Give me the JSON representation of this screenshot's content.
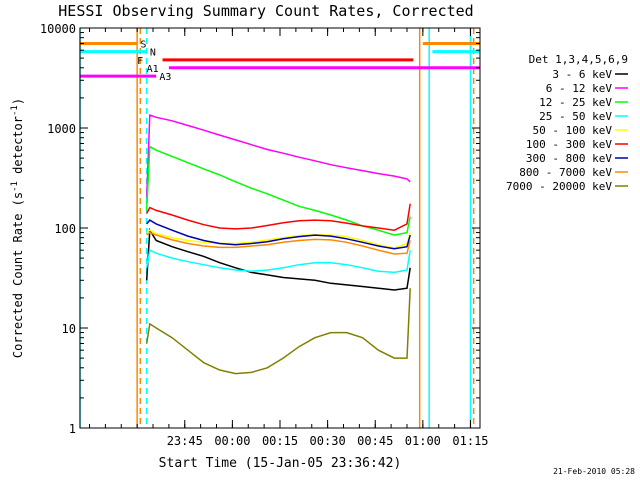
{
  "chart_data": {
    "type": "line",
    "title": "HESSI Observing Summary Count Rates, Corrected",
    "xlabel": "Start Time (15-Jan-05 23:36:42)",
    "ylabel_main": "Corrected Count Rate (s",
    "ylabel_sup1": "-1",
    "ylabel_mid": " detector",
    "ylabel_sup2": "-1",
    "ylabel_end": ")",
    "y_scale": "log",
    "ylim": [
      1,
      10000
    ],
    "xlim_minutes": [
      -24,
      102
    ],
    "x_ticks": [
      {
        "m": 9,
        "label": "23:45"
      },
      {
        "m": 24,
        "label": "00:00"
      },
      {
        "m": 39,
        "label": "00:15"
      },
      {
        "m": 54,
        "label": "00:30"
      },
      {
        "m": 69,
        "label": "00:45"
      },
      {
        "m": 84,
        "label": "01:00"
      },
      {
        "m": 99,
        "label": "01:15"
      }
    ],
    "y_ticks": [
      {
        "v": 1,
        "label": "1"
      },
      {
        "v": 10,
        "label": "10"
      },
      {
        "v": 100,
        "label": "100"
      },
      {
        "v": 1000,
        "label": "1000"
      },
      {
        "v": 10000,
        "label": "10000"
      }
    ],
    "legend_position": "right",
    "legend_title": "Det 1,3,4,5,6,9",
    "footer": "21-Feb-2010 05:28",
    "series": [
      {
        "name": "3 - 6 keV",
        "color": "#000000",
        "points": [
          [
            -3,
            30
          ],
          [
            -2,
            95
          ],
          [
            0,
            75
          ],
          [
            5,
            65
          ],
          [
            10,
            58
          ],
          [
            15,
            52
          ],
          [
            20,
            45
          ],
          [
            25,
            40
          ],
          [
            30,
            36
          ],
          [
            35,
            34
          ],
          [
            40,
            32
          ],
          [
            45,
            31
          ],
          [
            50,
            30
          ],
          [
            55,
            28
          ],
          [
            60,
            27
          ],
          [
            65,
            26
          ],
          [
            70,
            25
          ],
          [
            75,
            24
          ],
          [
            79,
            25
          ],
          [
            80,
            40
          ]
        ]
      },
      {
        "name": "6 - 12 keV",
        "color": "#ff00ff",
        "points": [
          [
            -3,
            200
          ],
          [
            -2,
            1350
          ],
          [
            0,
            1280
          ],
          [
            5,
            1180
          ],
          [
            10,
            1060
          ],
          [
            15,
            950
          ],
          [
            20,
            850
          ],
          [
            25,
            760
          ],
          [
            30,
            680
          ],
          [
            35,
            610
          ],
          [
            40,
            560
          ],
          [
            45,
            510
          ],
          [
            50,
            470
          ],
          [
            55,
            430
          ],
          [
            60,
            400
          ],
          [
            65,
            375
          ],
          [
            70,
            350
          ],
          [
            75,
            330
          ],
          [
            79,
            310
          ],
          [
            80,
            290
          ]
        ]
      },
      {
        "name": "12 - 25 keV",
        "color": "#00ff00",
        "points": [
          [
            -3,
            150
          ],
          [
            -2,
            650
          ],
          [
            0,
            600
          ],
          [
            5,
            520
          ],
          [
            10,
            450
          ],
          [
            15,
            390
          ],
          [
            20,
            340
          ],
          [
            25,
            290
          ],
          [
            30,
            250
          ],
          [
            35,
            220
          ],
          [
            40,
            190
          ],
          [
            45,
            165
          ],
          [
            50,
            150
          ],
          [
            55,
            135
          ],
          [
            60,
            120
          ],
          [
            65,
            105
          ],
          [
            70,
            95
          ],
          [
            75,
            85
          ],
          [
            79,
            90
          ],
          [
            80,
            130
          ]
        ]
      },
      {
        "name": "25 - 50 keV",
        "color": "#00ffff",
        "points": [
          [
            -3,
            40
          ],
          [
            -2,
            60
          ],
          [
            0,
            56
          ],
          [
            5,
            50
          ],
          [
            10,
            46
          ],
          [
            15,
            43
          ],
          [
            20,
            40
          ],
          [
            25,
            38
          ],
          [
            30,
            37
          ],
          [
            35,
            38
          ],
          [
            40,
            40
          ],
          [
            45,
            43
          ],
          [
            50,
            45
          ],
          [
            55,
            45
          ],
          [
            60,
            43
          ],
          [
            65,
            40
          ],
          [
            70,
            37
          ],
          [
            75,
            36
          ],
          [
            79,
            38
          ],
          [
            80,
            60
          ]
        ]
      },
      {
        "name": "50 - 100 keV",
        "color": "#ffff00",
        "points": [
          [
            -3,
            90
          ],
          [
            -2,
            95
          ],
          [
            0,
            88
          ],
          [
            5,
            80
          ],
          [
            10,
            75
          ],
          [
            15,
            72
          ],
          [
            20,
            70
          ],
          [
            25,
            70
          ],
          [
            30,
            72
          ],
          [
            35,
            76
          ],
          [
            40,
            80
          ],
          [
            45,
            84
          ],
          [
            50,
            86
          ],
          [
            55,
            85
          ],
          [
            60,
            82
          ],
          [
            65,
            75
          ],
          [
            70,
            68
          ],
          [
            75,
            63
          ],
          [
            79,
            70
          ],
          [
            80,
            90
          ]
        ]
      },
      {
        "name": "100 - 300 keV",
        "color": "#ff0000",
        "points": [
          [
            -3,
            140
          ],
          [
            -2,
            160
          ],
          [
            0,
            150
          ],
          [
            5,
            135
          ],
          [
            10,
            120
          ],
          [
            15,
            108
          ],
          [
            20,
            100
          ],
          [
            25,
            98
          ],
          [
            30,
            100
          ],
          [
            35,
            106
          ],
          [
            40,
            113
          ],
          [
            45,
            118
          ],
          [
            50,
            120
          ],
          [
            55,
            118
          ],
          [
            60,
            112
          ],
          [
            65,
            105
          ],
          [
            70,
            100
          ],
          [
            75,
            95
          ],
          [
            79,
            110
          ],
          [
            80,
            175
          ]
        ]
      },
      {
        "name": "300 - 800 keV",
        "color": "#0000aa",
        "points": [
          [
            -3,
            110
          ],
          [
            -2,
            120
          ],
          [
            0,
            110
          ],
          [
            5,
            95
          ],
          [
            10,
            83
          ],
          [
            15,
            75
          ],
          [
            20,
            70
          ],
          [
            25,
            68
          ],
          [
            30,
            70
          ],
          [
            35,
            73
          ],
          [
            40,
            78
          ],
          [
            45,
            82
          ],
          [
            50,
            85
          ],
          [
            55,
            83
          ],
          [
            60,
            78
          ],
          [
            65,
            72
          ],
          [
            70,
            66
          ],
          [
            75,
            62
          ],
          [
            79,
            65
          ],
          [
            80,
            85
          ]
        ]
      },
      {
        "name": "800 - 7000 keV",
        "color": "#ff8800",
        "points": [
          [
            -3,
            85
          ],
          [
            -2,
            90
          ],
          [
            0,
            85
          ],
          [
            5,
            76
          ],
          [
            10,
            70
          ],
          [
            15,
            66
          ],
          [
            20,
            64
          ],
          [
            25,
            64
          ],
          [
            30,
            66
          ],
          [
            35,
            68
          ],
          [
            40,
            72
          ],
          [
            45,
            75
          ],
          [
            50,
            77
          ],
          [
            55,
            76
          ],
          [
            60,
            72
          ],
          [
            65,
            66
          ],
          [
            70,
            60
          ],
          [
            75,
            55
          ],
          [
            79,
            56
          ],
          [
            80,
            75
          ]
        ]
      },
      {
        "name": "7000 - 20000 keV",
        "color": "#808000",
        "points": [
          [
            -3,
            7
          ],
          [
            -2,
            11
          ],
          [
            0,
            10
          ],
          [
            5,
            8
          ],
          [
            10,
            6
          ],
          [
            15,
            4.5
          ],
          [
            20,
            3.8
          ],
          [
            25,
            3.5
          ],
          [
            30,
            3.6
          ],
          [
            35,
            4
          ],
          [
            40,
            5
          ],
          [
            45,
            6.5
          ],
          [
            50,
            8
          ],
          [
            55,
            9
          ],
          [
            60,
            9
          ],
          [
            65,
            8
          ],
          [
            70,
            6
          ],
          [
            75,
            5
          ],
          [
            79,
            5
          ],
          [
            80,
            25
          ]
        ]
      }
    ],
    "flags": [
      {
        "label": "S",
        "color": "#ff8800",
        "y": 7000,
        "x1": -24,
        "x2": -6,
        "label_m": -5
      },
      {
        "label": "N",
        "color": "#00ffff",
        "y": 5800,
        "x1": -24,
        "x2": -3,
        "label_m": -2
      },
      {
        "label": "F",
        "color": "#ff0000",
        "y": 4800,
        "x1": 2,
        "x2": 81,
        "label_m": -6
      },
      {
        "label": "A1",
        "color": "#ff00ff",
        "y": 4000,
        "x1": 4,
        "x2": 102,
        "label_m": -3
      },
      {
        "label": "A3",
        "color": "#ff00ff",
        "y": 3300,
        "x1": -24,
        "x2": 0,
        "label_m": 1
      },
      {
        "label": "",
        "color": "#ff8800",
        "y": 7000,
        "x1": 84,
        "x2": 102,
        "label_m": 0
      },
      {
        "label": "",
        "color": "#00ffff",
        "y": 5800,
        "x1": 87,
        "x2": 102,
        "label_m": 0
      }
    ],
    "vlines": [
      {
        "m": -24,
        "color": "#00ffff",
        "dash": false
      },
      {
        "m": -6,
        "color": "#ff8800",
        "dash": false
      },
      {
        "m": -5,
        "color": "#ff8800",
        "dash": true
      },
      {
        "m": -3,
        "color": "#00ffff",
        "dash": true
      },
      {
        "m": 83,
        "color": "#ff8800",
        "dash": false
      },
      {
        "m": 86,
        "color": "#00ffff",
        "dash": false
      },
      {
        "m": 99,
        "color": "#00ffff",
        "dash": false
      },
      {
        "m": 100,
        "color": "#ff8800",
        "dash": true
      }
    ]
  }
}
